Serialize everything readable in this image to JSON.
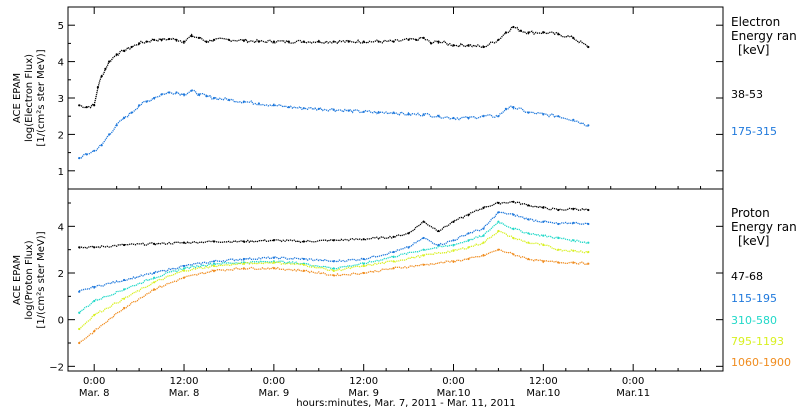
{
  "chart_data": [
    {
      "type": "scatter",
      "panel": "electron",
      "ylabel_lines": [
        "ACE EPAM",
        "log(Electron Flux)",
        "[1/(cm²s ster MeV)]"
      ],
      "ylim": [
        0.5,
        5.5
      ],
      "yticks": [
        1,
        2,
        3,
        4,
        5
      ],
      "legend_title_lines": [
        "Electron",
        "Energy ran",
        "[keV]"
      ],
      "series": [
        {
          "name": "38-53",
          "color": "#000000",
          "x": [
            -2.0,
            -1.0,
            0.0,
            0.5,
            1.0,
            1.5,
            2.0,
            3.0,
            4.0,
            5.0,
            6.0,
            7.0,
            8.0,
            9.0,
            10.0,
            11.0,
            12.0,
            13.0,
            14.0,
            15.0,
            16.0,
            18.0,
            20.0,
            22.0,
            24.0,
            26.0,
            28.0,
            30.0,
            32.0,
            34.0,
            36.0,
            38.0,
            40.0,
            42.0,
            43.0,
            44.0,
            45.0,
            46.0,
            48.0,
            50.0,
            52.0,
            54.0,
            55.0,
            56.0,
            57.0,
            58.0,
            60.0,
            62.0,
            64.0,
            66.0
          ],
          "y": [
            2.8,
            2.75,
            2.8,
            3.3,
            3.6,
            3.8,
            4.0,
            4.2,
            4.3,
            4.4,
            4.5,
            4.55,
            4.6,
            4.6,
            4.62,
            4.6,
            4.55,
            4.7,
            4.65,
            4.55,
            4.6,
            4.6,
            4.58,
            4.55,
            4.55,
            4.55,
            4.55,
            4.55,
            4.55,
            4.55,
            4.55,
            4.55,
            4.55,
            4.6,
            4.6,
            4.65,
            4.5,
            4.55,
            4.45,
            4.45,
            4.4,
            4.6,
            4.8,
            4.95,
            4.85,
            4.8,
            4.8,
            4.75,
            4.65,
            4.4
          ]
        },
        {
          "name": "175-315",
          "color": "#1e78dc",
          "x": [
            -2.0,
            -1.0,
            0.0,
            1.0,
            2.0,
            3.0,
            4.0,
            5.0,
            6.0,
            7.0,
            8.0,
            9.0,
            10.0,
            11.0,
            12.0,
            13.0,
            14.0,
            15.0,
            16.0,
            18.0,
            20.0,
            22.0,
            24.0,
            26.0,
            28.0,
            30.0,
            32.0,
            34.0,
            36.0,
            38.0,
            40.0,
            42.0,
            44.0,
            46.0,
            48.0,
            50.0,
            52.0,
            54.0,
            55.0,
            56.0,
            58.0,
            60.0,
            62.0,
            64.0,
            66.0
          ],
          "y": [
            1.35,
            1.45,
            1.55,
            1.7,
            2.0,
            2.25,
            2.45,
            2.6,
            2.8,
            2.9,
            3.0,
            3.1,
            3.15,
            3.15,
            3.1,
            3.2,
            3.1,
            3.05,
            3.0,
            2.95,
            2.9,
            2.85,
            2.8,
            2.75,
            2.72,
            2.7,
            2.68,
            2.65,
            2.62,
            2.6,
            2.6,
            2.55,
            2.55,
            2.5,
            2.45,
            2.45,
            2.5,
            2.5,
            2.7,
            2.75,
            2.6,
            2.55,
            2.5,
            2.4,
            2.25
          ]
        }
      ]
    },
    {
      "type": "scatter",
      "panel": "proton",
      "ylabel_lines": [
        "ACE EPAM",
        "log(Proton Flux)",
        "[1/(cm²s ster MeV)]"
      ],
      "ylim": [
        -2.2,
        5.6
      ],
      "yticks": [
        -2,
        0,
        2,
        4
      ],
      "legend_title_lines": [
        "Proton",
        "Energy ran",
        "[keV]"
      ],
      "series": [
        {
          "name": "47-68",
          "color": "#000000",
          "x": [
            -2.0,
            0.0,
            4.0,
            8.0,
            12.0,
            16.0,
            20.0,
            24.0,
            28.0,
            32.0,
            36.0,
            40.0,
            42.0,
            44.0,
            46.0,
            48.0,
            50.0,
            52.0,
            54.0,
            56.0,
            58.0,
            60.0,
            62.0,
            64.0,
            66.0
          ],
          "y": [
            3.1,
            3.1,
            3.2,
            3.25,
            3.3,
            3.35,
            3.35,
            3.4,
            3.35,
            3.4,
            3.45,
            3.55,
            3.7,
            4.2,
            3.8,
            4.2,
            4.5,
            4.8,
            5.0,
            5.05,
            4.9,
            4.8,
            4.7,
            4.75,
            4.7
          ]
        },
        {
          "name": "115-195",
          "color": "#1e78dc",
          "x": [
            -2.0,
            0.0,
            4.0,
            8.0,
            12.0,
            16.0,
            20.0,
            24.0,
            28.0,
            32.0,
            36.0,
            40.0,
            42.0,
            44.0,
            46.0,
            48.0,
            50.0,
            52.0,
            54.0,
            56.0,
            58.0,
            60.0,
            62.0,
            64.0,
            66.0
          ],
          "y": [
            1.2,
            1.4,
            1.7,
            2.0,
            2.3,
            2.5,
            2.6,
            2.65,
            2.6,
            2.5,
            2.6,
            2.9,
            3.1,
            3.5,
            3.2,
            3.4,
            3.7,
            3.9,
            4.6,
            4.5,
            4.3,
            4.2,
            4.1,
            4.15,
            4.1
          ]
        },
        {
          "name": "310-580",
          "color": "#20d8c8",
          "x": [
            -2.0,
            0.0,
            4.0,
            8.0,
            12.0,
            16.0,
            20.0,
            24.0,
            28.0,
            32.0,
            36.0,
            40.0,
            44.0,
            48.0,
            50.0,
            52.0,
            54.0,
            56.0,
            58.0,
            60.0,
            62.0,
            64.0,
            66.0
          ],
          "y": [
            0.3,
            0.8,
            1.3,
            1.8,
            2.2,
            2.4,
            2.45,
            2.5,
            2.4,
            2.2,
            2.4,
            2.7,
            3.0,
            3.2,
            3.4,
            3.6,
            4.2,
            3.9,
            3.7,
            3.6,
            3.5,
            3.4,
            3.3
          ]
        },
        {
          "name": "795-1193",
          "color": "#d8f020",
          "x": [
            -2.0,
            0.0,
            4.0,
            8.0,
            12.0,
            16.0,
            20.0,
            24.0,
            28.0,
            32.0,
            36.0,
            40.0,
            44.0,
            48.0,
            50.0,
            52.0,
            54.0,
            56.0,
            58.0,
            60.0,
            62.0,
            64.0,
            66.0
          ],
          "y": [
            -0.4,
            0.2,
            0.9,
            1.6,
            2.1,
            2.3,
            2.4,
            2.45,
            2.35,
            2.1,
            2.3,
            2.5,
            2.75,
            2.95,
            3.1,
            3.3,
            3.8,
            3.5,
            3.3,
            3.2,
            3.0,
            2.95,
            2.9
          ]
        },
        {
          "name": "1060-1900",
          "color": "#f08c1e",
          "x": [
            -2.0,
            0.0,
            4.0,
            8.0,
            12.0,
            16.0,
            20.0,
            24.0,
            28.0,
            32.0,
            36.0,
            40.0,
            44.0,
            48.0,
            50.0,
            52.0,
            54.0,
            56.0,
            58.0,
            60.0,
            62.0,
            64.0,
            66.0
          ],
          "y": [
            -1.0,
            -0.5,
            0.5,
            1.3,
            1.8,
            2.1,
            2.2,
            2.2,
            2.1,
            1.9,
            2.0,
            2.2,
            2.35,
            2.5,
            2.6,
            2.75,
            3.0,
            2.8,
            2.6,
            2.5,
            2.45,
            2.45,
            2.4
          ]
        }
      ]
    }
  ],
  "x_axis": {
    "xlim": [
      -3.5,
      84.0
    ],
    "ticks": [
      {
        "x": 0,
        "time": "0:00",
        "date": "Mar. 8"
      },
      {
        "x": 12,
        "time": "12:00",
        "date": "Mar. 8"
      },
      {
        "x": 24,
        "time": "0:00",
        "date": "Mar. 9"
      },
      {
        "x": 36,
        "time": "12:00",
        "date": "Mar. 9"
      },
      {
        "x": 48,
        "time": "0:00",
        "date": "Mar.10"
      },
      {
        "x": 60,
        "time": "12:00",
        "date": "Mar.10"
      },
      {
        "x": 72,
        "time": "0:00",
        "date": "Mar.11"
      }
    ],
    "label": "hours:minutes, Mar. 7, 2011 - Mar. 11, 2011"
  }
}
